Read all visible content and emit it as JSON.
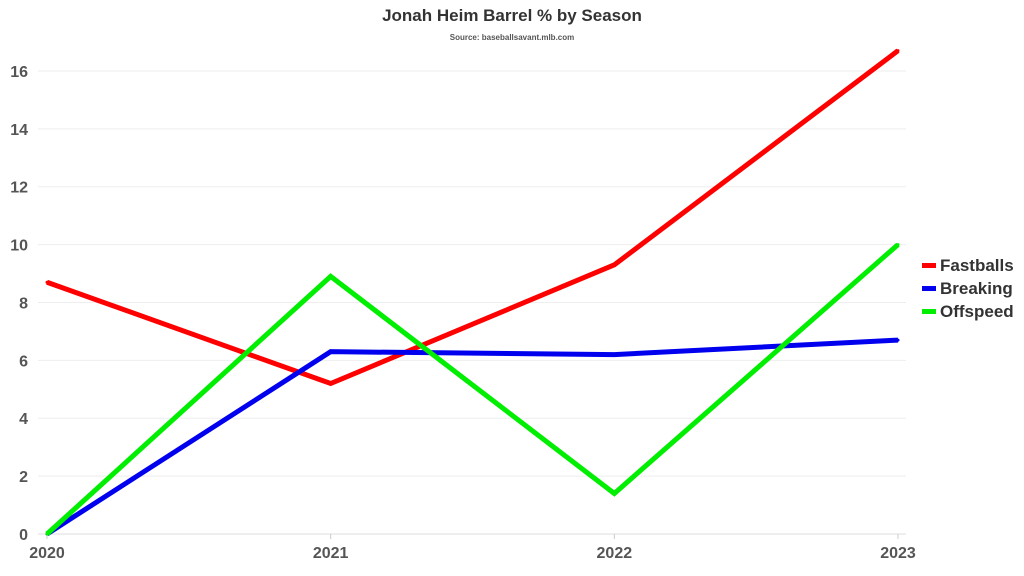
{
  "chart_data": {
    "type": "line",
    "title": "Jonah Heim Barrel % by Season",
    "subtitle": "Source: baseballsavant.mlb.com",
    "xlabel": "",
    "ylabel": "",
    "x": [
      "2020",
      "2021",
      "2022",
      "2023"
    ],
    "ylim": [
      0,
      17
    ],
    "yticks": [
      "0",
      "2",
      "4",
      "6",
      "8",
      "10",
      "12",
      "14",
      "16"
    ],
    "grid": true,
    "legend_position": "right",
    "series": [
      {
        "name": "Fastballs",
        "color": "#ff0000",
        "values": [
          8.7,
          5.2,
          9.3,
          16.7
        ]
      },
      {
        "name": "Breaking",
        "color": "#0000ee",
        "values": [
          0,
          6.3,
          6.2,
          6.7
        ]
      },
      {
        "name": "Offspeed",
        "color": "#00ee00",
        "values": [
          0,
          8.9,
          1.4,
          10.0
        ]
      }
    ]
  }
}
